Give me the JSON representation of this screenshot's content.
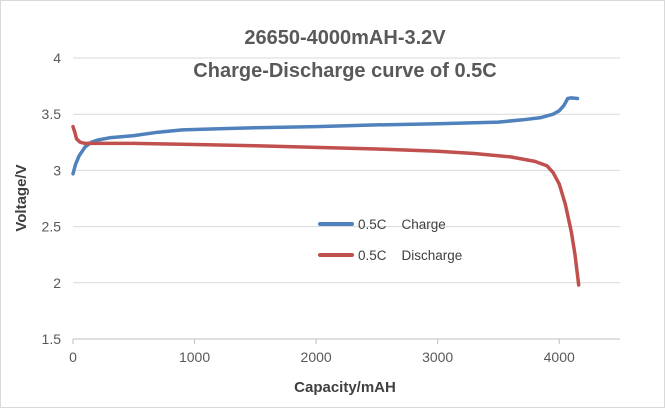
{
  "chart_data": {
    "type": "line",
    "title": "26650-4000mAH-3.2V",
    "subtitle": "Charge-Discharge  curve  of   0.5C",
    "xlabel": "Capacity/mAH",
    "ylabel": "Voltage/V",
    "xlim": [
      0,
      4500
    ],
    "ylim": [
      1.5,
      4
    ],
    "x_ticks": [
      0,
      1000,
      2000,
      3000,
      4000
    ],
    "x_tick_labels": [
      "0",
      "1000",
      "2000",
      "3000",
      "4000"
    ],
    "y_ticks": [
      1.5,
      2,
      2.5,
      3,
      3.5,
      4
    ],
    "y_tick_labels": [
      "1.5",
      "2",
      "2.5",
      "3",
      "3.5",
      "4"
    ],
    "grid": true,
    "legend_position": "center",
    "series": [
      {
        "name": "0.5C    Charge",
        "color": "#4f81bd",
        "points": [
          [
            0,
            2.97
          ],
          [
            20,
            3.05
          ],
          [
            50,
            3.13
          ],
          [
            100,
            3.21
          ],
          [
            150,
            3.25
          ],
          [
            200,
            3.27
          ],
          [
            300,
            3.29
          ],
          [
            500,
            3.31
          ],
          [
            700,
            3.34
          ],
          [
            900,
            3.36
          ],
          [
            1200,
            3.37
          ],
          [
            1500,
            3.38
          ],
          [
            2000,
            3.39
          ],
          [
            2500,
            3.405
          ],
          [
            3000,
            3.415
          ],
          [
            3500,
            3.43
          ],
          [
            3700,
            3.45
          ],
          [
            3850,
            3.47
          ],
          [
            3950,
            3.5
          ],
          [
            4000,
            3.53
          ],
          [
            4040,
            3.58
          ],
          [
            4070,
            3.64
          ],
          [
            4100,
            3.645
          ],
          [
            4150,
            3.64
          ]
        ]
      },
      {
        "name": "0.5C    Discharge",
        "color": "#c0504d",
        "points": [
          [
            0,
            3.39
          ],
          [
            15,
            3.34
          ],
          [
            30,
            3.28
          ],
          [
            60,
            3.25
          ],
          [
            100,
            3.24
          ],
          [
            500,
            3.24
          ],
          [
            1000,
            3.23
          ],
          [
            1500,
            3.22
          ],
          [
            2000,
            3.205
          ],
          [
            2500,
            3.19
          ],
          [
            3000,
            3.17
          ],
          [
            3300,
            3.15
          ],
          [
            3600,
            3.12
          ],
          [
            3800,
            3.08
          ],
          [
            3900,
            3.04
          ],
          [
            3950,
            2.98
          ],
          [
            4000,
            2.88
          ],
          [
            4050,
            2.7
          ],
          [
            4100,
            2.45
          ],
          [
            4130,
            2.25
          ],
          [
            4160,
            1.98
          ]
        ]
      }
    ]
  }
}
